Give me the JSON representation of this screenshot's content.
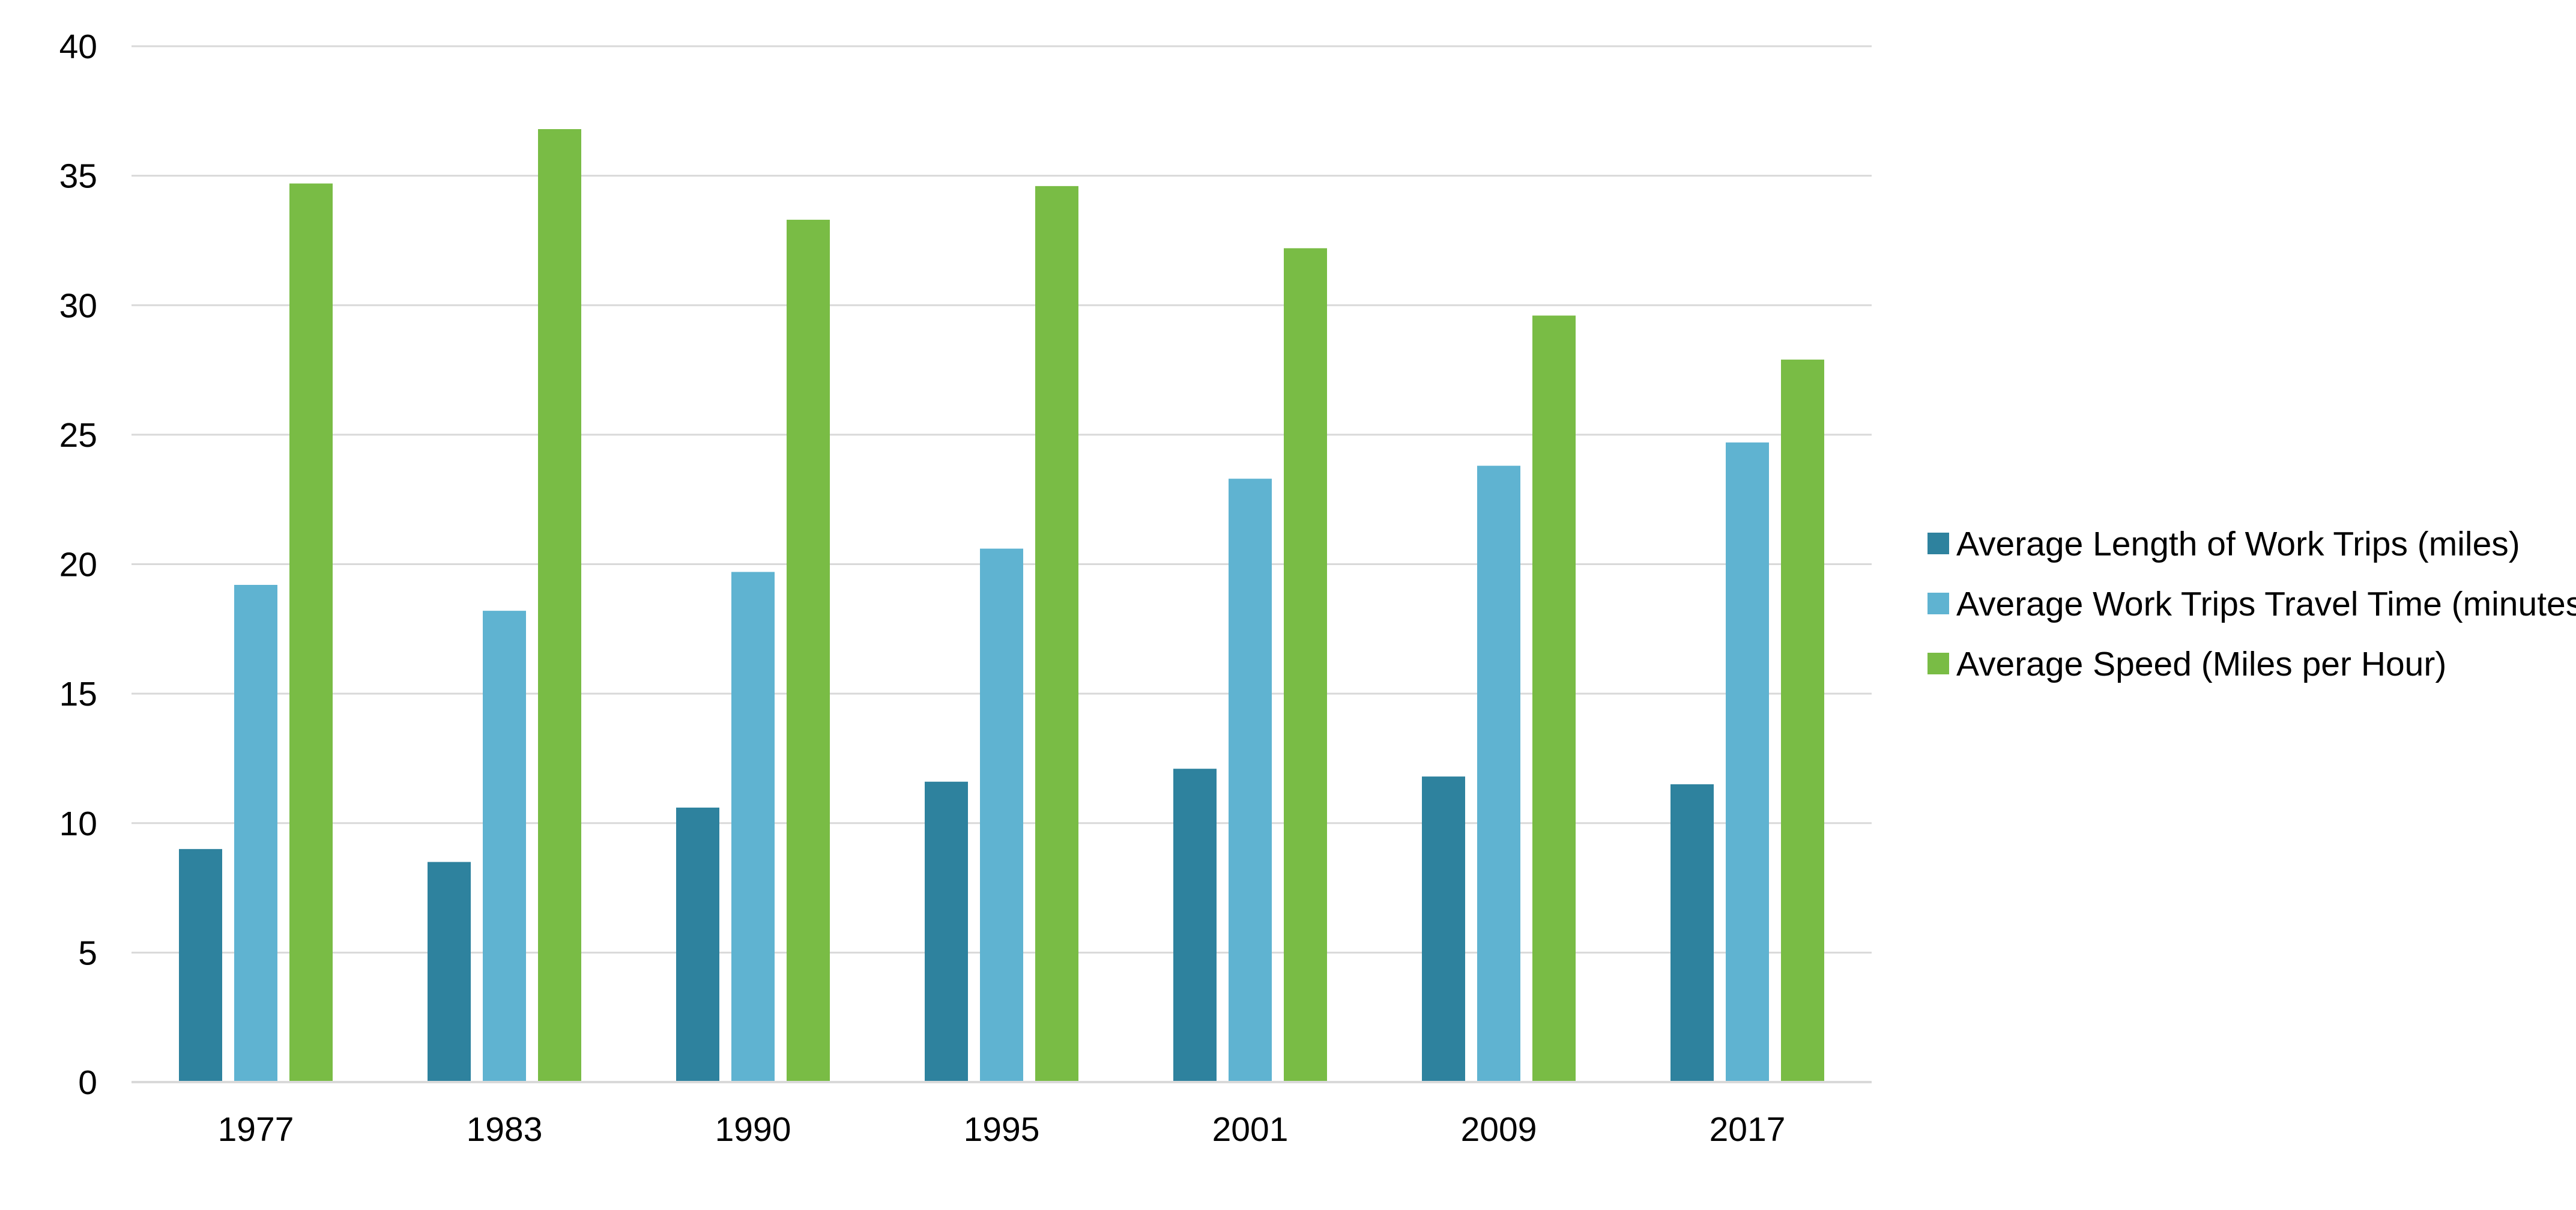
{
  "chart_data": {
    "type": "bar",
    "title": "",
    "xlabel": "",
    "ylabel": "",
    "categories": [
      "1977",
      "1983",
      "1990",
      "1995",
      "2001",
      "2009",
      "2017"
    ],
    "series": [
      {
        "name": "Average Length of Work Trips (miles)",
        "color": "#2e829e",
        "values": [
          9.0,
          8.5,
          10.6,
          11.6,
          12.1,
          11.8,
          11.5
        ]
      },
      {
        "name": "Average Work Trips Travel Time (minutes)",
        "color": "#5fb3d1",
        "values": [
          19.2,
          18.2,
          19.7,
          20.6,
          23.3,
          23.8,
          24.7
        ]
      },
      {
        "name": "Average Speed (Miles per Hour)",
        "color": "#79bc45",
        "values": [
          34.7,
          36.8,
          33.3,
          34.6,
          32.2,
          29.6,
          27.9
        ]
      }
    ],
    "ylim": [
      0,
      40
    ],
    "yticks": [
      0,
      5,
      10,
      15,
      20,
      25,
      30,
      35,
      40
    ],
    "grid": true,
    "gridColor": "#d9d9d9",
    "legend": "right"
  }
}
